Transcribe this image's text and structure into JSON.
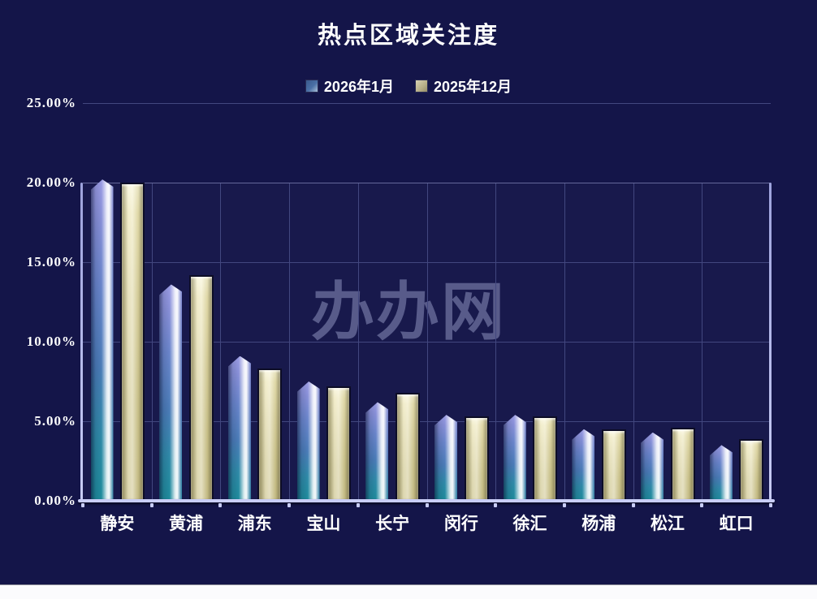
{
  "title": "热点区域关注度",
  "watermark": "办办网",
  "colors": {
    "background": "#141549",
    "gridline": "#42477f",
    "axis": "#c9cdf6",
    "text": "#ffffff",
    "series1_top": "#9b9ce4",
    "series1_bottom": "#1e8c9c",
    "series2_body": "#d6cf9c",
    "watermark": "#969cc8"
  },
  "chart_data": {
    "type": "bar",
    "title": "热点区域关注度",
    "categories": [
      "静安",
      "黄浦",
      "浦东",
      "宝山",
      "长宁",
      "闵行",
      "徐汇",
      "杨浦",
      "松江",
      "虹口"
    ],
    "series": [
      {
        "name": "2026年1月",
        "color": "#4a7ab8",
        "values": [
          20.2,
          13.6,
          9.1,
          7.5,
          6.2,
          5.4,
          5.4,
          4.5,
          4.3,
          3.5
        ]
      },
      {
        "name": "2025年12月",
        "color": "#cdc48c",
        "values": [
          20.0,
          14.2,
          8.3,
          7.2,
          6.8,
          5.3,
          5.3,
          4.5,
          4.6,
          3.9
        ]
      }
    ],
    "xlabel": "",
    "ylabel": "",
    "ylim": [
      0,
      25
    ],
    "ytick_values": [
      25,
      20,
      15,
      10,
      5,
      0
    ],
    "ytick_labels": [
      "25.00%",
      "20.00%",
      "15.00%",
      "10.00%",
      "5.00%",
      "0.00%"
    ],
    "grid": true,
    "legend_position": "top"
  }
}
